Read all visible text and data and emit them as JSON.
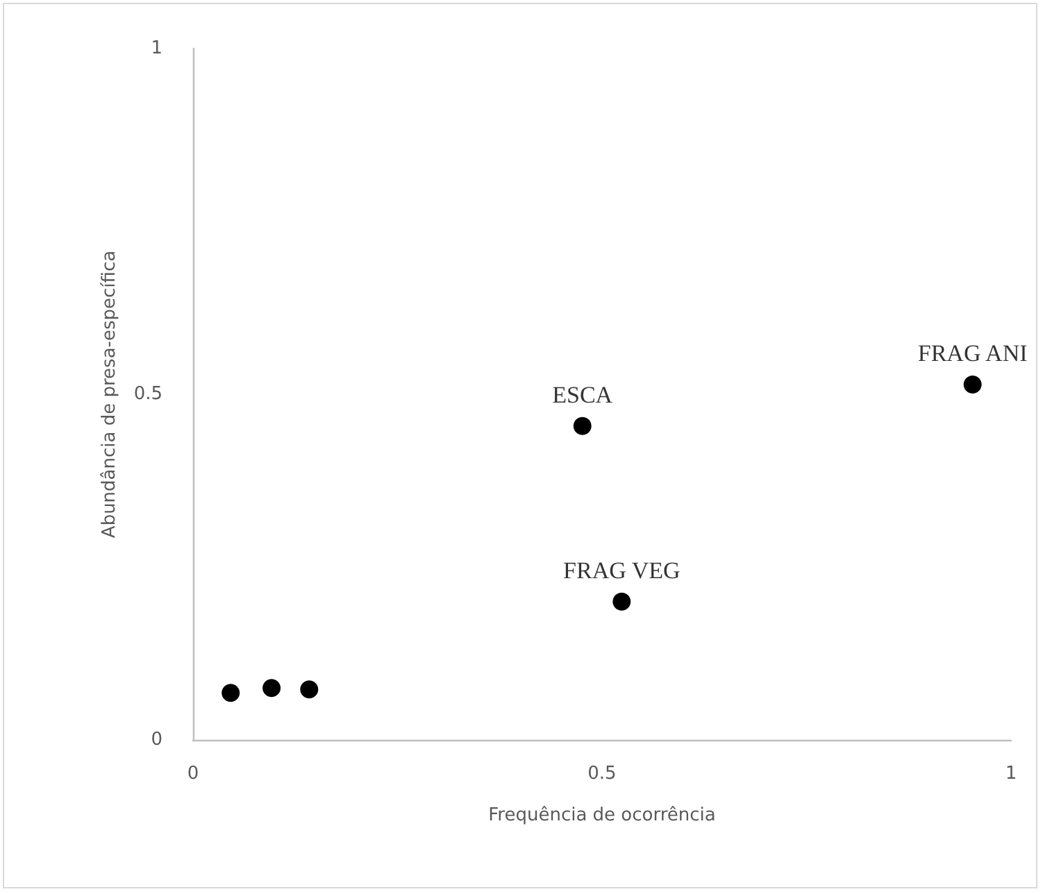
{
  "chart_data": {
    "type": "scatter",
    "xlabel": "Frequência de ocorrência",
    "ylabel": "Abundância de presa-específica",
    "x": [
      0.046,
      0.096,
      0.142,
      0.476,
      0.524,
      0.953
    ],
    "series": [
      {
        "color": "#000000",
        "values": [
          0.068,
          0.075,
          0.073,
          0.454,
          0.2,
          0.514
        ]
      }
    ],
    "annotations": [
      {
        "text": "ESCA",
        "x": 0.476,
        "y": 0.454
      },
      {
        "text": "FRAG VEG",
        "x": 0.524,
        "y": 0.2
      },
      {
        "text": "FRAG ANI",
        "x": 0.953,
        "y": 0.514
      }
    ],
    "xlim": [
      0,
      1
    ],
    "xticks": [
      0,
      0.5,
      1
    ],
    "ylim": [
      0,
      1
    ],
    "yticks": [
      0,
      0.5,
      1
    ],
    "grid": false,
    "marker": "circle"
  }
}
